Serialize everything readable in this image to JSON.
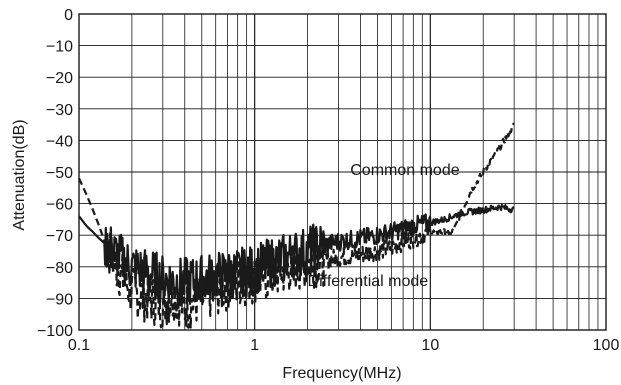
{
  "chart_data": {
    "type": "line",
    "title": "",
    "xlabel": "Frequency(MHz)",
    "ylabel": "Attenuation(dB)",
    "xscale": "log",
    "xlim": [
      0.1,
      100
    ],
    "ylim": [
      -100,
      0
    ],
    "grid": true,
    "x_ticks": [
      "0.1",
      "1",
      "10",
      "100"
    ],
    "y_ticks": [
      "0",
      "−10",
      "−20",
      "−30",
      "−40",
      "−50",
      "−60",
      "−70",
      "−80",
      "−90",
      "−100"
    ],
    "annotations": [
      {
        "text": "Common mode",
        "x": 3.5,
        "y": -51
      },
      {
        "text": "Differential mode",
        "x": 2.0,
        "y": -86
      }
    ],
    "series": [
      {
        "label": "Common mode",
        "style": "dashed",
        "x": [
          0.1,
          0.11,
          0.12,
          0.13,
          0.14,
          0.15,
          0.16,
          0.18,
          0.2,
          0.25,
          0.3,
          0.35,
          0.4,
          0.5,
          0.6,
          0.7,
          0.8,
          1,
          1.2,
          1.5,
          2,
          2.5,
          3,
          4,
          5,
          6,
          7,
          8,
          10,
          12,
          13,
          14,
          15,
          17,
          20,
          25,
          30
        ],
        "y": [
          -52,
          -57,
          -62,
          -67,
          -72,
          -76,
          -79,
          -84,
          -88,
          -90,
          -92,
          -89,
          -93,
          -90,
          -88,
          -86,
          -85,
          -84,
          -83,
          -81,
          -79,
          -78,
          -77,
          -76,
          -75,
          -74,
          -72,
          -71,
          -69,
          -69,
          -70,
          -67,
          -63,
          -56,
          -50,
          -42,
          -35
        ]
      },
      {
        "label": "Differential mode",
        "style": "solid",
        "x": [
          0.1,
          0.11,
          0.12,
          0.13,
          0.15,
          0.17,
          0.2,
          0.25,
          0.3,
          0.4,
          0.5,
          0.6,
          0.8,
          1,
          1.2,
          1.5,
          2,
          2.5,
          3,
          4,
          5,
          6,
          7,
          8,
          10,
          12,
          15,
          20,
          25,
          30
        ],
        "y": [
          -64,
          -67,
          -69,
          -71,
          -74,
          -77,
          -80,
          -82,
          -84,
          -85,
          -84,
          -83,
          -82,
          -81,
          -79,
          -77,
          -75,
          -73,
          -72,
          -71,
          -70,
          -69,
          -68,
          -67,
          -66,
          -65,
          -63,
          -62,
          -61,
          -62
        ]
      }
    ]
  }
}
